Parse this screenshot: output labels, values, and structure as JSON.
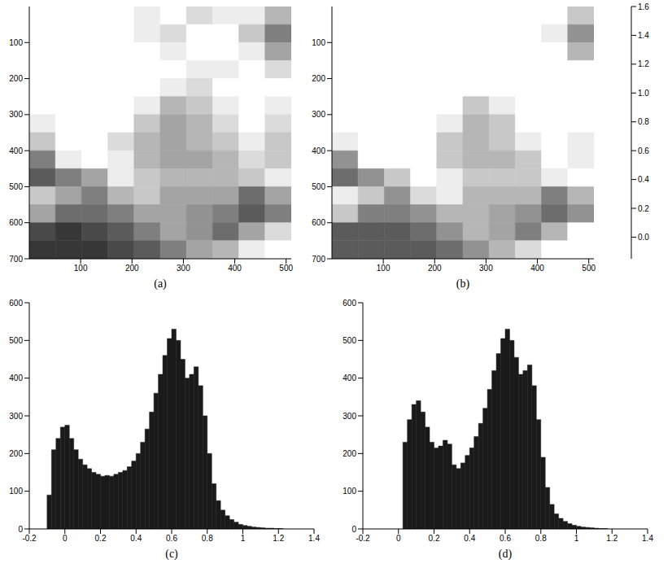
{
  "chart_data": [
    {
      "type": "heatmap",
      "label": "(a)",
      "xlim": [
        0,
        510
      ],
      "ylim": [
        0,
        700
      ],
      "xticks": [
        100,
        200,
        300,
        400,
        500
      ],
      "yticks": [
        100,
        200,
        300,
        400,
        500,
        600,
        700
      ],
      "x_edges": [
        0,
        51,
        102,
        153,
        204,
        255,
        306,
        357,
        408,
        459,
        510
      ],
      "y_edges": [
        0,
        50,
        100,
        150,
        200,
        250,
        300,
        350,
        400,
        450,
        500,
        550,
        600,
        650,
        700
      ],
      "cells": [
        [
          0.75,
          0.8,
          0.7,
          0.55,
          0.5,
          0.55,
          0.45,
          0.5,
          0.5,
          0.35
        ],
        [
          0.8,
          0.85,
          0.8,
          0.65,
          0.5,
          0.45,
          0.55,
          0.6,
          0.4,
          0.2
        ],
        [
          0.85,
          0.9,
          0.85,
          0.75,
          0.6,
          0.5,
          0.6,
          0.55,
          0.5,
          0.3
        ],
        [
          0.8,
          0.9,
          0.9,
          0.8,
          0.7,
          0.55,
          0.5,
          0.5,
          0.55,
          0.45
        ],
        [
          0.7,
          0.85,
          0.9,
          0.85,
          0.7,
          0.5,
          0.45,
          0.55,
          0.6,
          0.55
        ],
        [
          0.6,
          0.75,
          0.85,
          0.7,
          0.5,
          0.35,
          0.4,
          0.5,
          0.6,
          0.5
        ],
        [
          0.5,
          0.7,
          0.8,
          0.6,
          0.4,
          0.3,
          0.35,
          0.45,
          0.55,
          0.45
        ],
        [
          0.4,
          0.7,
          0.75,
          0.45,
          0.35,
          0.3,
          0.35,
          0.4,
          0.5,
          0.4
        ],
        [
          0.2,
          0.5,
          0.6,
          0.5,
          0.35,
          0.3,
          0.3,
          0.35,
          0.45,
          0.4
        ],
        [
          0.1,
          0.2,
          0.3,
          0.5,
          0.4,
          0.35,
          0.35,
          0.35,
          0.4,
          0.5
        ],
        [
          0.4,
          0.3,
          0.2,
          0.35,
          0.4,
          0.3,
          0.3,
          0.3,
          0.15,
          0.3
        ],
        [
          0.3,
          0.15,
          0.15,
          0.2,
          0.3,
          0.3,
          0.25,
          0.2,
          0.1,
          0.2
        ],
        [
          0.05,
          0.0,
          0.05,
          0.1,
          0.2,
          0.3,
          0.25,
          0.15,
          0.3,
          0.45
        ],
        [
          0.0,
          0.0,
          0.0,
          0.05,
          0.1,
          0.2,
          0.3,
          0.35,
          0.5,
          0.6
        ]
      ]
    },
    {
      "type": "heatmap",
      "label": "(b)",
      "xlim": [
        0,
        510
      ],
      "ylim": [
        0,
        700
      ],
      "xticks": [
        100,
        200,
        300,
        400,
        500
      ],
      "yticks": [
        100,
        200,
        300,
        400,
        500,
        600,
        700
      ],
      "x_edges": [
        0,
        51,
        102,
        153,
        204,
        255,
        306,
        357,
        408,
        459,
        510
      ],
      "y_edges": [
        0,
        50,
        100,
        150,
        200,
        250,
        300,
        350,
        400,
        450,
        500,
        550,
        600,
        650,
        700
      ],
      "cells": [
        [
          1.0,
          1.1,
          1.0,
          0.75,
          0.65,
          0.7,
          0.55,
          0.6,
          0.6,
          0.4
        ],
        [
          1.1,
          1.2,
          1.1,
          0.9,
          0.65,
          0.55,
          0.7,
          0.8,
          0.5,
          0.25
        ],
        [
          1.2,
          1.25,
          1.2,
          1.05,
          0.8,
          0.65,
          0.8,
          0.7,
          0.65,
          0.35
        ],
        [
          1.1,
          1.25,
          1.25,
          1.1,
          0.95,
          0.7,
          0.65,
          0.65,
          0.7,
          0.55
        ],
        [
          0.95,
          1.2,
          1.25,
          1.2,
          0.95,
          0.65,
          0.55,
          0.7,
          0.8,
          0.7
        ],
        [
          0.8,
          1.05,
          1.2,
          0.95,
          0.65,
          0.4,
          0.5,
          0.65,
          0.8,
          0.65
        ],
        [
          0.65,
          0.95,
          1.1,
          0.8,
          0.5,
          0.35,
          0.4,
          0.55,
          0.7,
          0.55
        ],
        [
          0.5,
          0.95,
          1.05,
          0.6,
          0.4,
          0.35,
          0.4,
          0.5,
          0.65,
          0.5
        ],
        [
          0.25,
          0.65,
          0.8,
          0.65,
          0.4,
          0.35,
          0.35,
          0.4,
          0.55,
          0.5
        ],
        [
          0.15,
          0.25,
          0.4,
          0.65,
          0.5,
          0.4,
          0.4,
          0.4,
          0.5,
          0.65
        ],
        [
          0.5,
          0.4,
          0.25,
          0.45,
          0.5,
          0.35,
          0.35,
          0.35,
          0.2,
          0.35
        ],
        [
          0.4,
          0.2,
          0.2,
          0.25,
          0.35,
          0.35,
          0.3,
          0.25,
          0.15,
          0.25
        ],
        [
          0.1,
          0.1,
          0.1,
          0.15,
          0.25,
          0.35,
          0.3,
          0.2,
          0.35,
          0.55
        ],
        [
          0.1,
          0.1,
          0.1,
          0.1,
          0.15,
          0.25,
          0.35,
          0.45,
          0.65,
          0.8
        ]
      ],
      "colorbar": {
        "range": [
          -0.15,
          1.6
        ],
        "ticks": [
          {
            "value": 0,
            "label": "0.0"
          },
          0.2,
          0.4,
          0.6,
          0.8,
          {
            "value": 1,
            "label": "1.0"
          },
          1.2,
          1.4,
          1.6
        ]
      }
    },
    {
      "type": "histogram",
      "label": "(c)",
      "color": "#1a1a1a",
      "xlim": [
        -0.2,
        1.4
      ],
      "ylim": [
        0,
        600
      ],
      "xticks": [
        -0.2,
        0,
        0.2,
        0.4,
        0.6,
        0.8,
        1,
        1.2,
        1.4
      ],
      "yticks": [
        0,
        100,
        200,
        300,
        400,
        500,
        600
      ],
      "bins": [
        -0.1,
        -0.075,
        -0.05,
        -0.025,
        0,
        0.025,
        0.05,
        0.075,
        0.1,
        0.125,
        0.15,
        0.175,
        0.2,
        0.225,
        0.25,
        0.275,
        0.3,
        0.325,
        0.35,
        0.375,
        0.4,
        0.425,
        0.45,
        0.475,
        0.5,
        0.525,
        0.55,
        0.575,
        0.6,
        0.625,
        0.65,
        0.675,
        0.7,
        0.725,
        0.75,
        0.775,
        0.8,
        0.825,
        0.85,
        0.875,
        0.9,
        0.925,
        0.95,
        0.975,
        1,
        1.025,
        1.05,
        1.075,
        1.1,
        1.125,
        1.15,
        1.175,
        1.2,
        1.225,
        1.25,
        1.275,
        1.3
      ],
      "counts": [
        90,
        210,
        240,
        270,
        275,
        240,
        210,
        185,
        170,
        160,
        150,
        145,
        140,
        142,
        140,
        145,
        150,
        155,
        165,
        180,
        200,
        230,
        265,
        310,
        360,
        410,
        460,
        505,
        530,
        500,
        450,
        400,
        410,
        430,
        380,
        300,
        200,
        120,
        75,
        50,
        35,
        25,
        18,
        12,
        9,
        7,
        5,
        4,
        3,
        2,
        2,
        1,
        1,
        0,
        0,
        0
      ]
    },
    {
      "type": "histogram",
      "label": "(d)",
      "color": "#1a1a1a",
      "xlim": [
        -0.2,
        1.4
      ],
      "ylim": [
        0,
        600
      ],
      "xticks": [
        -0.2,
        0,
        0.2,
        0.4,
        0.6,
        0.8,
        1,
        1.2,
        1.4
      ],
      "yticks": [
        0,
        100,
        200,
        300,
        400,
        500,
        600
      ],
      "bins": [
        -0.1,
        -0.075,
        -0.05,
        -0.025,
        0,
        0.025,
        0.05,
        0.075,
        0.1,
        0.125,
        0.15,
        0.175,
        0.2,
        0.225,
        0.25,
        0.275,
        0.3,
        0.325,
        0.35,
        0.375,
        0.4,
        0.425,
        0.45,
        0.475,
        0.5,
        0.525,
        0.55,
        0.575,
        0.6,
        0.625,
        0.65,
        0.675,
        0.7,
        0.725,
        0.75,
        0.775,
        0.8,
        0.825,
        0.85,
        0.875,
        0.9,
        0.925,
        0.95,
        0.975,
        1,
        1.025,
        1.05,
        1.075,
        1.1,
        1.125,
        1.15,
        1.175,
        1.2,
        1.225,
        1.25,
        1.275,
        1.3
      ],
      "counts": [
        0,
        0,
        0,
        0,
        0,
        230,
        290,
        330,
        340,
        310,
        270,
        230,
        215,
        220,
        235,
        225,
        170,
        160,
        175,
        195,
        215,
        245,
        280,
        320,
        370,
        420,
        465,
        505,
        530,
        500,
        455,
        410,
        420,
        435,
        380,
        290,
        190,
        110,
        65,
        40,
        28,
        20,
        14,
        10,
        7,
        5,
        4,
        3,
        2,
        1,
        1,
        0,
        0,
        0,
        0,
        0
      ]
    }
  ]
}
